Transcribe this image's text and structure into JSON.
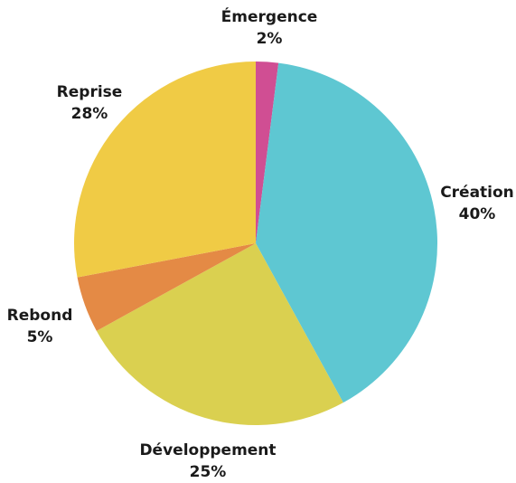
{
  "chart_data": {
    "type": "pie",
    "title": "",
    "start_angle_deg": 0,
    "direction": "clockwise",
    "slices": [
      {
        "label": "Émergence",
        "value": 2,
        "value_label": "2%",
        "color": "#D04E93"
      },
      {
        "label": "Création",
        "value": 40,
        "value_label": "40%",
        "color": "#5EC7D2"
      },
      {
        "label": "Développement",
        "value": 25,
        "value_label": "25%",
        "color": "#DAD050"
      },
      {
        "label": "Rebond",
        "value": 5,
        "value_label": "5%",
        "color": "#E48A45"
      },
      {
        "label": "Reprise",
        "value": 28,
        "value_label": "28%",
        "color": "#F0CB45"
      }
    ]
  }
}
